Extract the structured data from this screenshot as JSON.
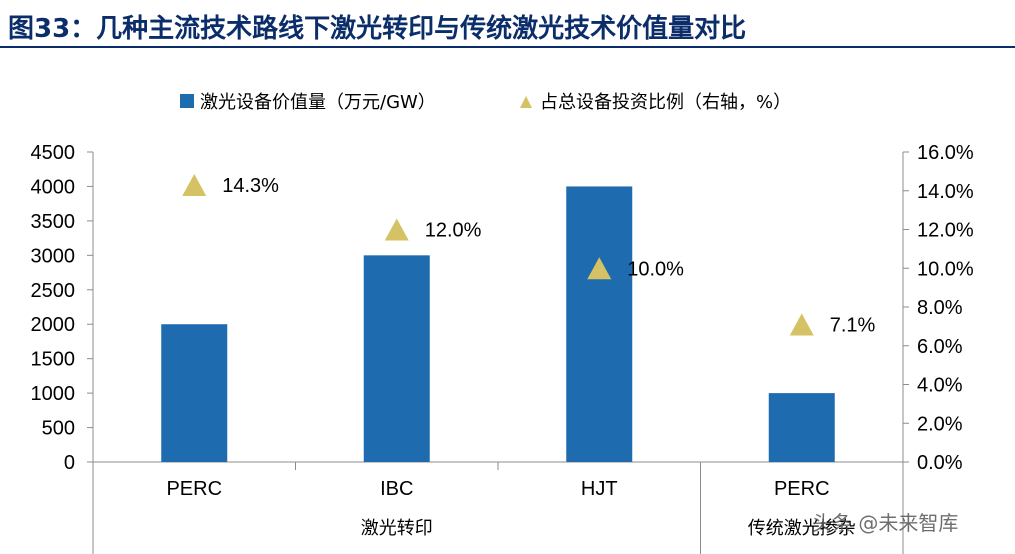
{
  "title": "图33：几种主流技术路线下激光转印与传统激光技术价值量对比",
  "watermark": "头条 @未来智库",
  "chart_data": {
    "type": "bar",
    "categories": [
      "PERC",
      "IBC",
      "HJT",
      "PERC"
    ],
    "groups": [
      {
        "label": "激光转印",
        "categories": [
          "PERC",
          "IBC",
          "HJT"
        ]
      },
      {
        "label": "传统激光掺杂",
        "categories": [
          "PERC"
        ]
      }
    ],
    "series": [
      {
        "name": "激光设备价值量（万元/GW）",
        "type": "bar",
        "axis": "left",
        "color": "#1f6bb0",
        "values": [
          2000,
          3000,
          4000,
          1000
        ]
      },
      {
        "name": "占总设备投资比例（右轴，%）",
        "type": "scatter",
        "marker": "triangle",
        "axis": "right",
        "color": "#d4c265",
        "values": [
          14.3,
          12.0,
          10.0,
          7.1
        ],
        "labels": [
          "14.3%",
          "12.0%",
          "10.0%",
          "7.1%"
        ]
      }
    ],
    "ylim": [
      0,
      4500
    ],
    "yticks": [
      "0",
      "500",
      "1000",
      "1500",
      "2000",
      "2500",
      "3000",
      "3500",
      "4000",
      "4500"
    ],
    "y2lim": [
      0,
      16
    ],
    "y2ticks": [
      "0.0%",
      "2.0%",
      "4.0%",
      "6.0%",
      "8.0%",
      "10.0%",
      "12.0%",
      "14.0%",
      "16.0%"
    ],
    "legend_position": "top",
    "grid": false
  }
}
